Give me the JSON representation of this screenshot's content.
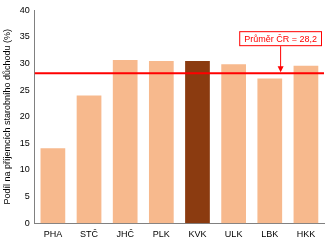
{
  "chart_data": {
    "type": "bar",
    "y_label": "Podíl na příjemcích starobního důchodu (%)",
    "categories": [
      "PHA",
      "STČ",
      "JHČ",
      "PLK",
      "KVK",
      "ULK",
      "LBK",
      "HKK"
    ],
    "values": [
      14.1,
      24.0,
      30.7,
      30.5,
      30.5,
      29.9,
      27.2,
      29.6
    ],
    "colors": [
      "#f7b98d",
      "#f7b98d",
      "#f7b98d",
      "#f7b98d",
      "#8b3b10",
      "#f7b98d",
      "#f7b98d",
      "#f7b98d"
    ],
    "ylim": [
      0,
      40
    ],
    "yticks": [
      0,
      5,
      10,
      15,
      20,
      25,
      30,
      35,
      40
    ],
    "grid": false,
    "annotations": [
      {
        "text": "Průměr ČR = 28,2",
        "value": 28.2,
        "color": "#ff0000"
      }
    ]
  }
}
